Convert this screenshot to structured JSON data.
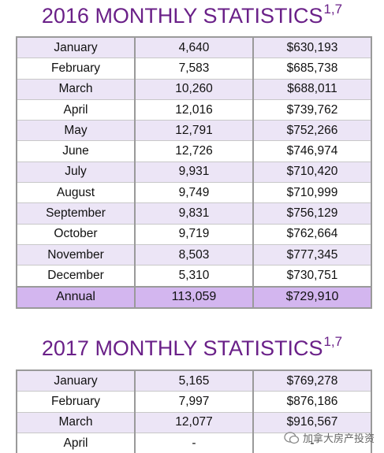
{
  "tables": [
    {
      "title": "2016 MONTHLY STATISTICS",
      "superscript": "1,7",
      "rows": [
        [
          "January",
          "4,640",
          "$630,193"
        ],
        [
          "February",
          "7,583",
          "$685,738"
        ],
        [
          "March",
          "10,260",
          "$688,011"
        ],
        [
          "April",
          "12,016",
          "$739,762"
        ],
        [
          "May",
          "12,791",
          "$752,266"
        ],
        [
          "June",
          "12,726",
          "$746,974"
        ],
        [
          "July",
          "9,931",
          "$710,420"
        ],
        [
          "August",
          "9,749",
          "$710,999"
        ],
        [
          "September",
          "9,831",
          "$756,129"
        ],
        [
          "October",
          "9,719",
          "$762,664"
        ],
        [
          "November",
          "8,503",
          "$777,345"
        ],
        [
          "December",
          "5,310",
          "$730,751"
        ]
      ],
      "total": [
        "Annual",
        "113,059",
        "$729,910"
      ]
    },
    {
      "title": "2017 MONTHLY STATISTICS",
      "superscript": "1,7",
      "rows": [
        [
          "January",
          "5,165",
          "$769,278"
        ],
        [
          "February",
          "7,997",
          "$876,186"
        ],
        [
          "March",
          "12,077",
          "$916,567"
        ],
        [
          "April",
          "-",
          "-"
        ]
      ]
    }
  ],
  "watermark": "加拿大房产投资"
}
